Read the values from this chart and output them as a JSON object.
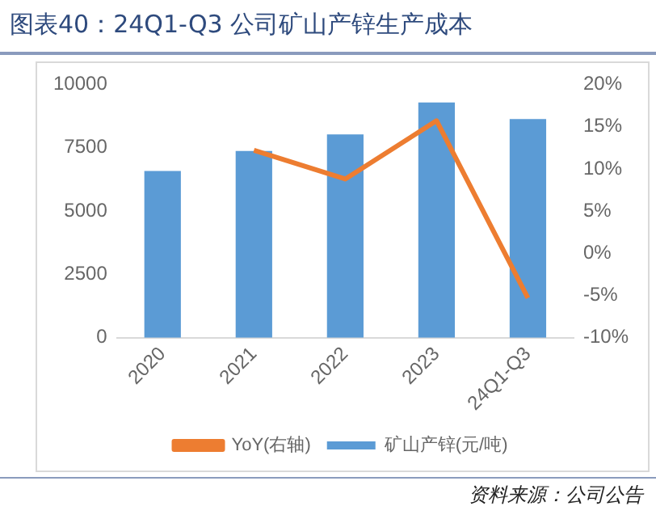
{
  "chart_data": {
    "type": "bar",
    "title": "图表40：24Q1-Q3 公司矿山产锌生产成本",
    "categories": [
      "2020",
      "2021",
      "2022",
      "2023",
      "24Q1-Q3"
    ],
    "series": [
      {
        "name": "矿山产锌(元/吨)",
        "color": "#5b9bd5",
        "values": [
          6580,
          7370,
          8030,
          9290,
          8630
        ]
      },
      {
        "name": "YoY(右轴)",
        "type": "line",
        "axis": "y2",
        "color": "#ed7d31",
        "values": [
          null,
          12.2,
          8.8,
          15.7,
          -5.3
        ]
      }
    ],
    "ylim": [
      0,
      10000
    ],
    "yticks": [
      0,
      2500,
      5000,
      7500,
      10000
    ],
    "y2lim": [
      -10,
      20
    ],
    "y2ticks": [
      {
        "value": -10,
        "label": "-10%"
      },
      {
        "value": -5,
        "label": "-5%"
      },
      {
        "value": 0,
        "label": "0%"
      },
      {
        "value": 5,
        "label": "5%"
      },
      {
        "value": 10,
        "label": "10%"
      },
      {
        "value": 15,
        "label": "15%"
      },
      {
        "value": 20,
        "label": "20%"
      }
    ],
    "grid": false,
    "legend": "bottom",
    "marker": "none",
    "annotations": [
      "资料来源：公司公告"
    ]
  }
}
